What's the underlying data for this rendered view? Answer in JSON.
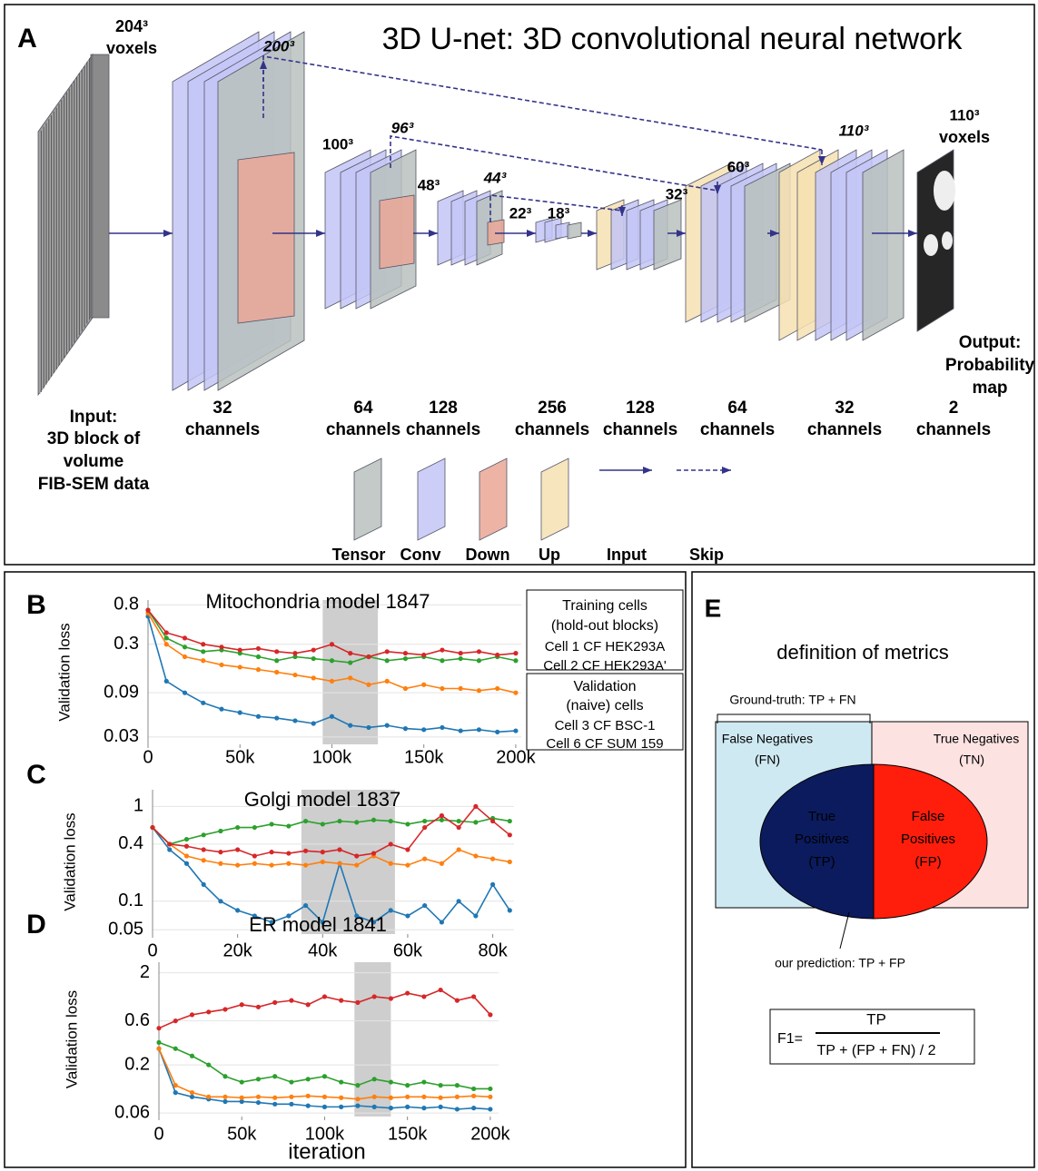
{
  "panel_a": {
    "label": "A",
    "title": "3D U-net: 3D convolutional neural network",
    "input_size": "204³",
    "input_unit": "voxels",
    "size_labels": [
      "200³",
      "100³",
      "96³",
      "48³",
      "44³",
      "22³",
      "18³",
      "32³",
      "60³",
      "110³"
    ],
    "output_size": "110³",
    "output_unit": "voxels",
    "input_label": [
      "Input:",
      "3D block of",
      "volume",
      "FIB-SEM data"
    ],
    "output_label": [
      "Output:",
      "Probability",
      "map"
    ],
    "channel_counts": [
      32,
      64,
      128,
      256,
      128,
      64,
      32,
      2
    ],
    "channel_unit": "channels",
    "legend": [
      "Tensor",
      "Conv",
      "Down",
      "Up",
      "Input",
      "Skip"
    ]
  },
  "chart_data": [
    {
      "type": "line",
      "panel": "B",
      "title": "Mitochondria model 1847",
      "y_label": "Validation loss",
      "log_y": true,
      "grid": true,
      "x": [
        0,
        10000,
        20000,
        30000,
        40000,
        50000,
        60000,
        70000,
        80000,
        90000,
        100000,
        110000,
        120000,
        130000,
        140000,
        150000,
        160000,
        170000,
        180000,
        190000,
        200000
      ],
      "xlim": [
        0,
        203000
      ],
      "xticks": [
        0,
        {
          "value": 50000,
          "label": "50k"
        },
        {
          "value": 100000,
          "label": "100k"
        },
        {
          "value": 150000,
          "label": "150k"
        },
        {
          "value": 200000,
          "label": "200k"
        }
      ],
      "ylim": [
        0.025,
        0.9
      ],
      "yticks": [
        0.03,
        0.09,
        0.3,
        0.8
      ],
      "shaded_range": [
        95000,
        125000
      ],
      "legend_groups": [
        {
          "title": "Training cells",
          "subtitle": "(hold-out blocks)"
        },
        {
          "title": "Validation",
          "subtitle": "(naive) cells"
        }
      ],
      "series": [
        {
          "name": "Cell 1 CF HEK293A",
          "color": "#1f77b4",
          "values": [
            0.6,
            0.12,
            0.09,
            0.07,
            0.06,
            0.055,
            0.05,
            0.048,
            0.045,
            0.042,
            0.05,
            0.04,
            0.038,
            0.04,
            0.037,
            0.036,
            0.038,
            0.035,
            0.036,
            0.034,
            0.035
          ]
        },
        {
          "name": "Cell 2 CF HEK293A'",
          "color": "#ff7f0e",
          "values": [
            0.65,
            0.3,
            0.22,
            0.2,
            0.18,
            0.17,
            0.16,
            0.15,
            0.14,
            0.13,
            0.12,
            0.13,
            0.11,
            0.12,
            0.1,
            0.11,
            0.1,
            0.1,
            0.095,
            0.1,
            0.09
          ]
        },
        {
          "name": "Cell 3 CF BSC-1",
          "color": "#2ca02c",
          "values": [
            0.7,
            0.35,
            0.28,
            0.25,
            0.26,
            0.24,
            0.22,
            0.2,
            0.22,
            0.21,
            0.2,
            0.19,
            0.22,
            0.2,
            0.21,
            0.22,
            0.2,
            0.21,
            0.2,
            0.22,
            0.2
          ]
        },
        {
          "name": "Cell 6 CF SUM 159",
          "color": "#d62728",
          "values": [
            0.7,
            0.4,
            0.35,
            0.3,
            0.28,
            0.26,
            0.27,
            0.25,
            0.24,
            0.26,
            0.3,
            0.24,
            0.22,
            0.25,
            0.24,
            0.23,
            0.26,
            0.24,
            0.25,
            0.23,
            0.24
          ]
        }
      ]
    },
    {
      "type": "line",
      "panel": "C",
      "title": "Golgi model 1837",
      "y_label": "Validation loss",
      "log_y": true,
      "grid": true,
      "x": [
        0,
        4000,
        8000,
        12000,
        16000,
        20000,
        24000,
        28000,
        32000,
        36000,
        40000,
        44000,
        48000,
        52000,
        56000,
        60000,
        64000,
        68000,
        72000,
        76000,
        80000,
        84000
      ],
      "xlim": [
        0,
        85000
      ],
      "xticks": [
        0,
        {
          "value": 20000,
          "label": "20k"
        },
        {
          "value": 40000,
          "label": "40k"
        },
        {
          "value": 60000,
          "label": "60k"
        },
        {
          "value": 80000,
          "label": "80k"
        }
      ],
      "ylim": [
        0.045,
        1.5
      ],
      "yticks": [
        0.05,
        0.1,
        0.4,
        1
      ],
      "shaded_range": [
        35000,
        57000
      ],
      "series": [
        {
          "color": "#1f77b4",
          "values": [
            0.6,
            0.35,
            0.25,
            0.15,
            0.1,
            0.08,
            0.07,
            0.06,
            0.07,
            0.09,
            0.06,
            0.25,
            0.07,
            0.06,
            0.08,
            0.07,
            0.09,
            0.06,
            0.1,
            0.07,
            0.15,
            0.08
          ]
        },
        {
          "color": "#ff7f0e",
          "values": [
            0.6,
            0.4,
            0.3,
            0.27,
            0.25,
            0.24,
            0.25,
            0.24,
            0.25,
            0.24,
            0.26,
            0.25,
            0.24,
            0.3,
            0.25,
            0.24,
            0.28,
            0.25,
            0.35,
            0.3,
            0.28,
            0.26
          ]
        },
        {
          "color": "#2ca02c",
          "values": [
            0.6,
            0.4,
            0.45,
            0.5,
            0.55,
            0.6,
            0.6,
            0.65,
            0.62,
            0.7,
            0.65,
            0.7,
            0.68,
            0.72,
            0.7,
            0.65,
            0.7,
            0.72,
            0.7,
            0.68,
            0.75,
            0.7
          ]
        },
        {
          "color": "#d62728",
          "values": [
            0.6,
            0.4,
            0.38,
            0.35,
            0.33,
            0.35,
            0.3,
            0.33,
            0.32,
            0.34,
            0.33,
            0.35,
            0.3,
            0.32,
            0.4,
            0.35,
            0.6,
            0.8,
            0.6,
            1.0,
            0.7,
            0.5
          ]
        }
      ]
    },
    {
      "type": "line",
      "panel": "D",
      "title": "ER model 1841",
      "y_label": "Validation loss",
      "x_label": "iteration",
      "log_y": true,
      "grid": true,
      "x": [
        0,
        10000,
        20000,
        30000,
        40000,
        50000,
        60000,
        70000,
        80000,
        90000,
        100000,
        110000,
        120000,
        130000,
        140000,
        150000,
        160000,
        170000,
        180000,
        190000,
        200000
      ],
      "xlim": [
        0,
        205000
      ],
      "xticks": [
        0,
        {
          "value": 50000,
          "label": "50k"
        },
        {
          "value": 100000,
          "label": "100k"
        },
        {
          "value": 150000,
          "label": "150k"
        },
        {
          "value": 200000,
          "label": "200k"
        }
      ],
      "ylim": [
        0.055,
        2.6
      ],
      "yticks": [
        0.06,
        0.2,
        0.6,
        2
      ],
      "shaded_range": [
        118000,
        140000
      ],
      "series": [
        {
          "color": "#1f77b4",
          "values": [
            0.3,
            0.1,
            0.09,
            0.085,
            0.08,
            0.08,
            0.078,
            0.075,
            0.075,
            0.072,
            0.07,
            0.07,
            0.072,
            0.07,
            0.068,
            0.07,
            0.068,
            0.07,
            0.066,
            0.068,
            0.066
          ]
        },
        {
          "color": "#ff7f0e",
          "values": [
            0.3,
            0.12,
            0.1,
            0.09,
            0.09,
            0.088,
            0.09,
            0.088,
            0.09,
            0.092,
            0.09,
            0.088,
            0.085,
            0.09,
            0.088,
            0.09,
            0.09,
            0.088,
            0.09,
            0.092,
            0.09
          ]
        },
        {
          "color": "#2ca02c",
          "values": [
            0.35,
            0.3,
            0.25,
            0.2,
            0.15,
            0.13,
            0.14,
            0.15,
            0.13,
            0.14,
            0.15,
            0.13,
            0.12,
            0.14,
            0.13,
            0.12,
            0.13,
            0.12,
            0.12,
            0.11,
            0.11
          ]
        },
        {
          "color": "#d62728",
          "values": [
            0.5,
            0.6,
            0.7,
            0.75,
            0.8,
            0.9,
            0.85,
            0.95,
            1.0,
            0.9,
            1.1,
            1.0,
            0.95,
            1.1,
            1.05,
            1.2,
            1.1,
            1.3,
            1.0,
            1.1,
            0.7
          ]
        }
      ]
    }
  ],
  "panel_e": {
    "label": "E",
    "title": "definition of metrics",
    "bracket": "Ground-truth: TP + FN",
    "fn": [
      "False Negatives",
      "(FN)"
    ],
    "tn": [
      "True Negatives",
      "(TN)"
    ],
    "tp": [
      "True",
      "Positives",
      "(TP)"
    ],
    "fp": [
      "False",
      "Positives",
      "(FP)"
    ],
    "prediction": "our prediction: TP + FP",
    "formula_lhs": "F1=",
    "numerator": "TP",
    "denominator": "TP + (FP + FN) / 2"
  }
}
